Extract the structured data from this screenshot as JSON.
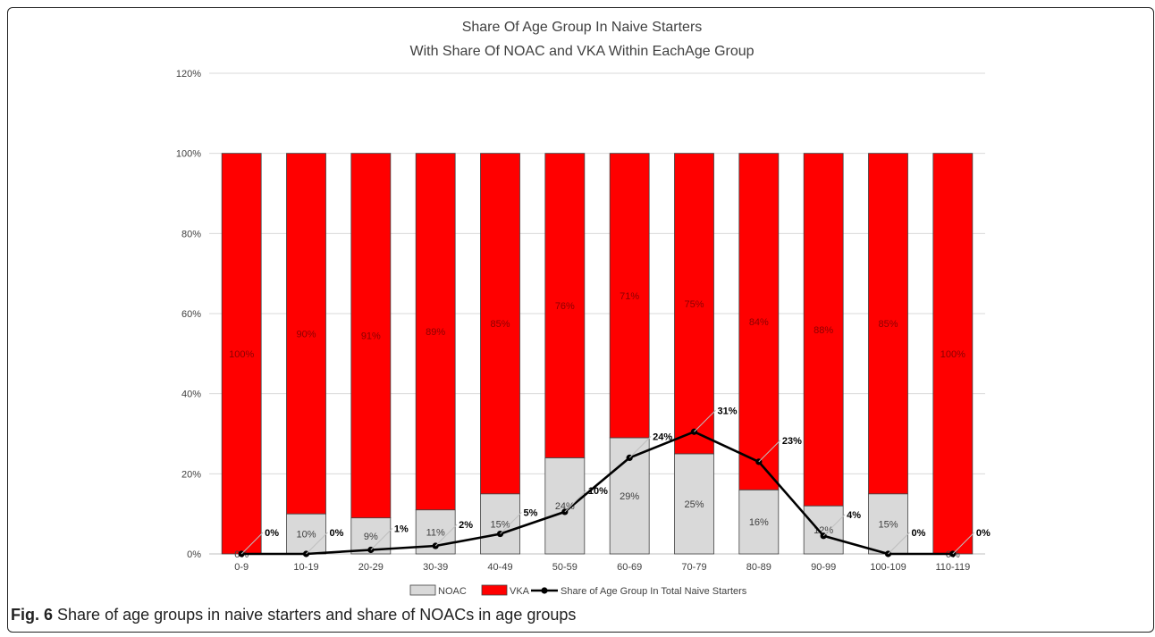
{
  "chart_data": {
    "type": "bar",
    "title": "Share Of Age Group In Naive Starters",
    "subtitle": "With Share Of NOAC and VKA Within EachAge Group",
    "categories": [
      "0-9",
      "10-19",
      "20-29",
      "30-39",
      "40-49",
      "50-59",
      "60-69",
      "70-79",
      "80-89",
      "90-99",
      "100-109",
      "110-119"
    ],
    "series": [
      {
        "name": "NOAC",
        "kind": "bar",
        "color": "#d9d9d9",
        "values": [
          0,
          10,
          9,
          11,
          15,
          24,
          29,
          25,
          16,
          12,
          15,
          0
        ],
        "labels": [
          "0%",
          "10%",
          "9%",
          "11%",
          "15%",
          "24%",
          "29%",
          "25%",
          "16%",
          "12%",
          "15%",
          "0%"
        ]
      },
      {
        "name": "VKA",
        "kind": "bar",
        "color": "#ff0000",
        "values": [
          100,
          90,
          91,
          89,
          85,
          76,
          71,
          75,
          84,
          88,
          85,
          100
        ],
        "labels": [
          "100%",
          "90%",
          "91%",
          "89%",
          "85%",
          "76%",
          "71%",
          "75%",
          "84%",
          "88%",
          "85%",
          "100%"
        ]
      },
      {
        "name": "Share of Age Group In Total Naive Starters",
        "kind": "line",
        "color": "#000000",
        "values": [
          0,
          0,
          1,
          2,
          5,
          10.5,
          24,
          30.5,
          23,
          4.5,
          0,
          0
        ],
        "labels": [
          "0%",
          "0%",
          "1%",
          "2%",
          "5%",
          "10%",
          "24%",
          "31%",
          "23%",
          "4%",
          "0%",
          "0%"
        ]
      }
    ],
    "yticks": [
      "0%",
      "20%",
      "40%",
      "60%",
      "80%",
      "100%",
      "120%"
    ],
    "ylim": [
      0,
      120
    ],
    "grid": true,
    "legend_position": "bottom"
  },
  "caption": {
    "label": "Fig. 6",
    "text": "Share of age groups in naive starters and share of NOACs in age groups"
  }
}
